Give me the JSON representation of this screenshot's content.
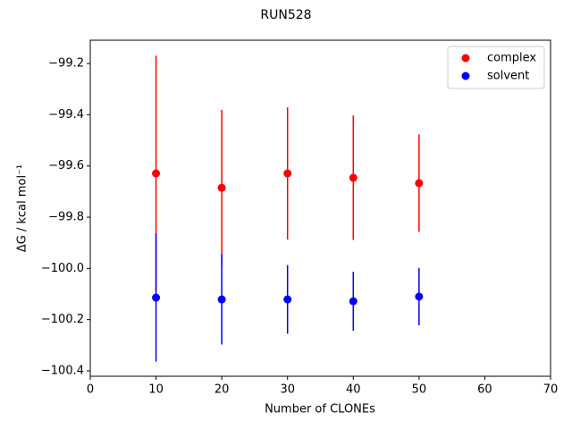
{
  "chart_data": {
    "type": "errorbar-scatter",
    "title": "RUN528",
    "xlabel": "Number of CLONEs",
    "ylabel": "ΔG / kcal mol⁻¹",
    "x": [
      10,
      20,
      30,
      40,
      50
    ],
    "series": [
      {
        "name": "complex",
        "color": "#ff0000",
        "values": [
          -99.629,
          -99.685,
          -99.629,
          -99.646,
          -99.667
        ],
        "errors": [
          0.46,
          0.304,
          0.258,
          0.243,
          0.19
        ]
      },
      {
        "name": "solvent",
        "color": "#0000ff",
        "values": [
          -100.114,
          -100.121,
          -100.121,
          -100.128,
          -100.11
        ],
        "errors": [
          0.25,
          0.176,
          0.134,
          0.115,
          0.112
        ]
      }
    ],
    "xlim": [
      0,
      70
    ],
    "xticks": [
      0,
      10,
      20,
      30,
      40,
      50,
      60,
      70
    ],
    "ylim": [
      -100.421,
      -99.109
    ],
    "yticks": [
      {
        "value": -100.4,
        "label": "−100.4"
      },
      {
        "value": -100.2,
        "label": "−100.2"
      },
      {
        "value": -100.0,
        "label": "−100.0"
      },
      {
        "value": -99.8,
        "label": "−99.8"
      },
      {
        "value": -99.6,
        "label": "−99.6"
      },
      {
        "value": -99.4,
        "label": "−99.4"
      },
      {
        "value": -99.2,
        "label": "−99.2"
      }
    ],
    "legend": "upper right"
  }
}
